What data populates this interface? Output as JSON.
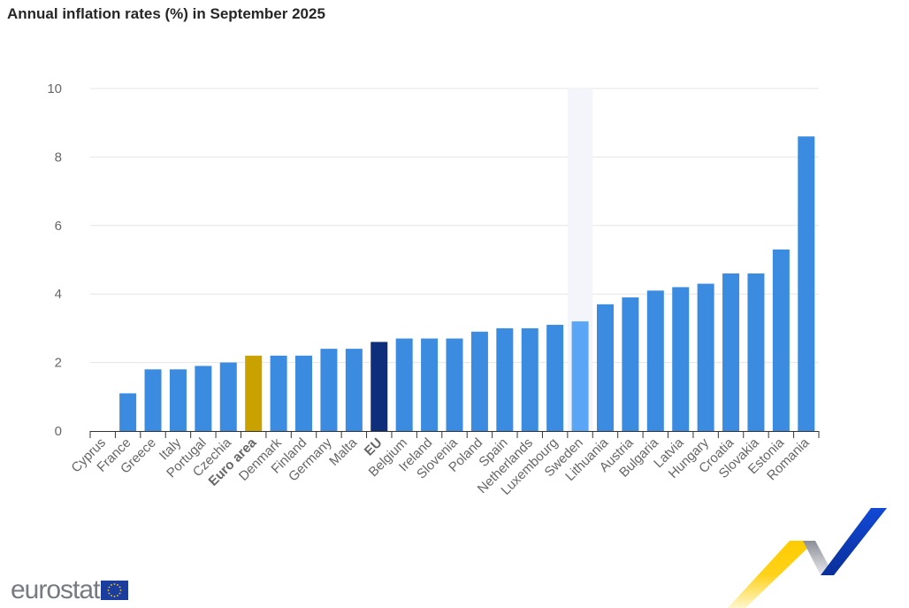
{
  "chart_data": {
    "type": "bar",
    "title": "Annual inflation rates (%) in September 2025",
    "xlabel": "",
    "ylabel": "",
    "ylim": [
      0,
      10
    ],
    "yticks": [
      0,
      2,
      4,
      6,
      8,
      10
    ],
    "grid": true,
    "categories": [
      "Cyprus",
      "France",
      "Greece",
      "Italy",
      "Portugal",
      "Czechia",
      "Euro area",
      "Denmark",
      "Finland",
      "Germany",
      "Malta",
      "EU",
      "Belgium",
      "Ireland",
      "Slovenia",
      "Poland",
      "Spain",
      "Netherlands",
      "Luxembourg",
      "Sweden",
      "Lithuania",
      "Austria",
      "Bulgaria",
      "Latvia",
      "Hungary",
      "Croatia",
      "Slovakia",
      "Estonia",
      "Romania"
    ],
    "values": [
      0,
      1.1,
      1.8,
      1.8,
      1.9,
      2.0,
      2.2,
      2.2,
      2.2,
      2.4,
      2.4,
      2.6,
      2.7,
      2.7,
      2.7,
      2.9,
      3.0,
      3.0,
      3.1,
      3.2,
      3.7,
      3.9,
      4.1,
      4.2,
      4.3,
      4.6,
      4.6,
      5.3,
      8.6
    ],
    "bold_categories": [
      "Euro area",
      "EU"
    ],
    "highlighted_category": "Sweden",
    "colors": {
      "default": "#3b8be0",
      "euro_area": "#c9a200",
      "eu": "#0e2d7a",
      "highlight": "#5aa5f5",
      "hover_band": "#f3f5fb"
    }
  },
  "branding": {
    "logo_text": "eurostat"
  }
}
